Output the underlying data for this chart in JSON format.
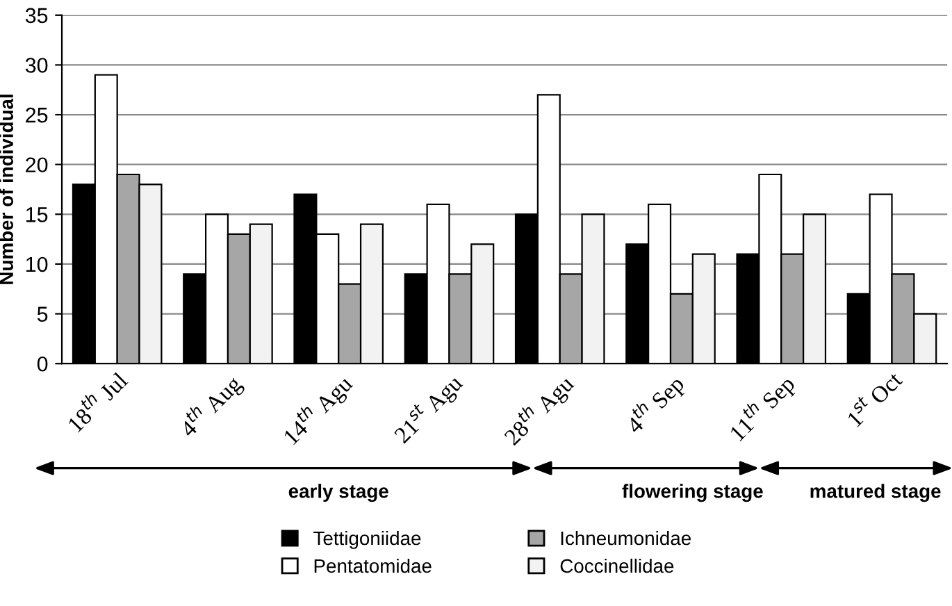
{
  "chart_data": {
    "type": "bar",
    "ylabel": "Number of individual",
    "categories": [
      "18$^{th}$ Jul",
      "4$^{th}$ Aug",
      "14$^{th}$ Agu",
      "21$^{st}$ Agu",
      "28$^{th}$ Agu",
      "4$^{th}$ Sep",
      "11$^{th}$ Sep",
      "1$^{st}$ Oct"
    ],
    "series": [
      {
        "name": "Tettigoniidae",
        "color": "#000000",
        "values": [
          18,
          9,
          17,
          9,
          15,
          12,
          11,
          7
        ]
      },
      {
        "name": "Pentatomidae",
        "color": "#ffffff",
        "values": [
          29,
          15,
          13,
          16,
          27,
          16,
          19,
          17
        ]
      },
      {
        "name": "Ichneumonidae",
        "color": "#a6a6a6",
        "values": [
          19,
          13,
          8,
          9,
          9,
          7,
          11,
          9
        ]
      },
      {
        "name": "Coccinellidae",
        "color": "#f2f2f2",
        "values": [
          18,
          14,
          14,
          12,
          15,
          11,
          15,
          5
        ]
      }
    ],
    "ylim": [
      0,
      35
    ],
    "yticks": [
      0,
      5,
      10,
      15,
      20,
      25,
      30,
      35
    ],
    "grid": "y",
    "legend": "bottom",
    "annotations": [
      "early stage",
      "flowering stage",
      "matured stage"
    ]
  }
}
